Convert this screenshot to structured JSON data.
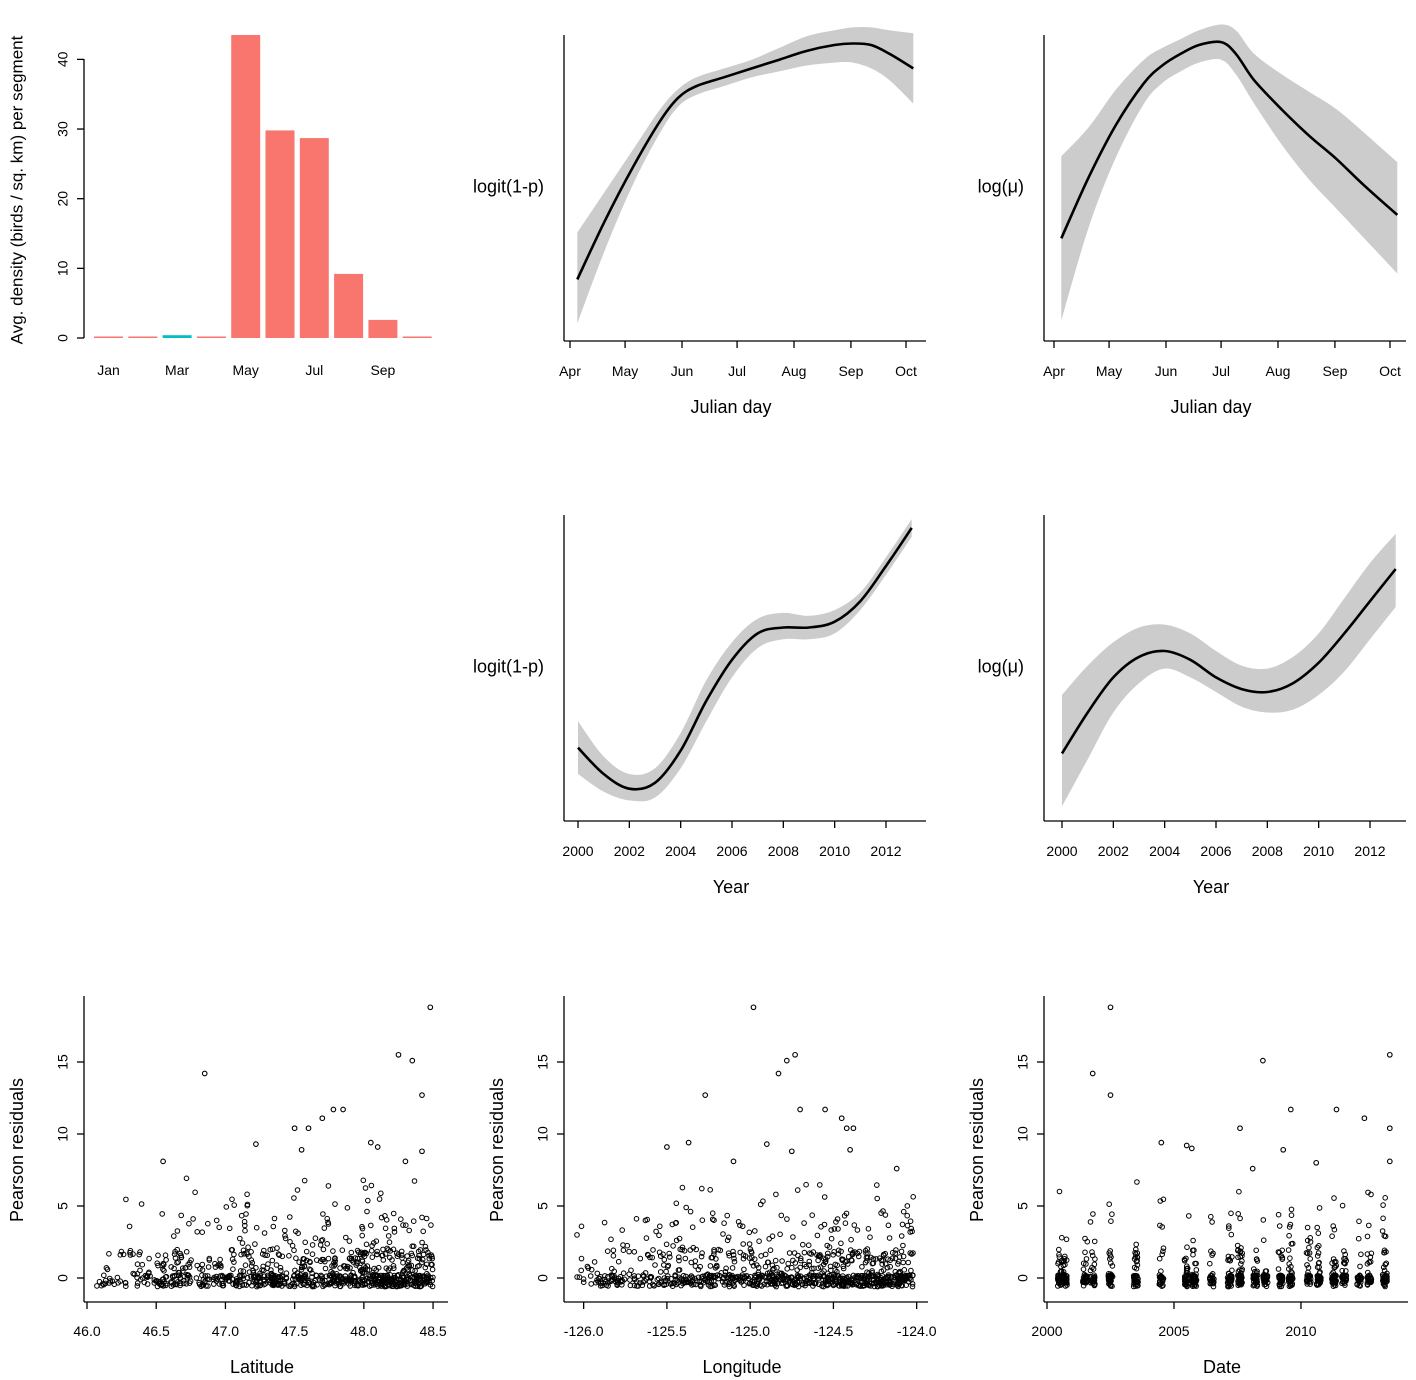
{
  "chart_data": [
    {
      "id": "seasonal-density",
      "type": "bar",
      "title": "",
      "ylabel": "Avg. density (birds / sq. km) per segment",
      "xlabel": "",
      "categories": [
        "Jan",
        "Feb",
        "Mar",
        "Apr",
        "May",
        "Jun",
        "Jul",
        "Aug",
        "Sep",
        "Oct"
      ],
      "tick_labels": [
        "Jan",
        "Mar",
        "May",
        "Jul",
        "Sep"
      ],
      "values": [
        0,
        0,
        0.4,
        0.15,
        43.5,
        29.8,
        28.7,
        9.2,
        2.6,
        0.2
      ],
      "bar_colors": [
        "#F8766D",
        "#F8766D",
        "#00BFC4",
        "#F8766D",
        "#F8766D",
        "#F8766D",
        "#F8766D",
        "#F8766D",
        "#F8766D",
        "#F8766D"
      ],
      "yticks": [
        0,
        10,
        20,
        30,
        40
      ],
      "ylim": [
        0,
        43.5
      ]
    },
    {
      "id": "julian-p",
      "type": "line",
      "xlabel": "Julian day",
      "ylabel": "logit(1-p)",
      "xticks": [
        91,
        121,
        152,
        182,
        213,
        244,
        274
      ],
      "xtick_labels": [
        "Apr",
        "May",
        "Jun",
        "Jul",
        "Aug",
        "Sep",
        "Oct"
      ],
      "xlim": [
        91,
        278
      ],
      "ylim": [
        0,
        1
      ],
      "x": [
        95,
        110,
        125,
        140,
        150,
        160,
        175,
        190,
        205,
        220,
        235,
        245,
        255,
        265,
        278
      ],
      "fit": [
        0.2,
        0.4,
        0.58,
        0.74,
        0.82,
        0.86,
        0.89,
        0.92,
        0.95,
        0.98,
        1.0,
        1.005,
        1.0,
        0.97,
        0.92
      ],
      "lower": [
        0.05,
        0.3,
        0.52,
        0.7,
        0.79,
        0.83,
        0.86,
        0.89,
        0.91,
        0.93,
        0.94,
        0.94,
        0.92,
        0.88,
        0.8
      ],
      "upper": [
        0.36,
        0.5,
        0.64,
        0.78,
        0.85,
        0.89,
        0.92,
        0.95,
        0.99,
        1.03,
        1.05,
        1.06,
        1.06,
        1.05,
        1.04
      ]
    },
    {
      "id": "julian-mu",
      "type": "line",
      "xlabel": "Julian day",
      "ylabel": "log(μ)",
      "xticks": [
        91,
        121,
        152,
        182,
        213,
        244,
        274
      ],
      "xtick_labels": [
        "Apr",
        "May",
        "Jun",
        "Jul",
        "Aug",
        "Sep",
        "Oct"
      ],
      "xlim": [
        91,
        278
      ],
      "ylim": [
        0,
        1
      ],
      "x": [
        95,
        110,
        125,
        140,
        150,
        160,
        170,
        182,
        190,
        200,
        215,
        230,
        245,
        260,
        278
      ],
      "fit": [
        0.34,
        0.55,
        0.73,
        0.87,
        0.93,
        0.97,
        1.0,
        1.01,
        0.97,
        0.88,
        0.78,
        0.69,
        0.61,
        0.52,
        0.42
      ],
      "lower": [
        0.06,
        0.38,
        0.62,
        0.8,
        0.87,
        0.91,
        0.94,
        0.95,
        0.9,
        0.8,
        0.66,
        0.54,
        0.44,
        0.34,
        0.22
      ],
      "upper": [
        0.62,
        0.72,
        0.85,
        0.95,
        0.99,
        1.02,
        1.05,
        1.07,
        1.05,
        0.97,
        0.9,
        0.84,
        0.78,
        0.7,
        0.6
      ]
    },
    {
      "id": "year-p",
      "type": "line",
      "xlabel": "Year",
      "ylabel": "logit(1-p)",
      "xticks": [
        2000,
        2002,
        2004,
        2006,
        2008,
        2010,
        2012
      ],
      "xtick_labels": [
        "2000",
        "2002",
        "2004",
        "2006",
        "2008",
        "2010",
        "2012"
      ],
      "xlim": [
        2000,
        2013
      ],
      "ylim": [
        0,
        1
      ],
      "x": [
        2000,
        2001,
        2002,
        2003,
        2004,
        2005,
        2006,
        2007,
        2008,
        2009,
        2010,
        2011,
        2012,
        2013
      ],
      "fit": [
        0.24,
        0.15,
        0.1,
        0.12,
        0.23,
        0.4,
        0.54,
        0.63,
        0.65,
        0.65,
        0.67,
        0.74,
        0.86,
        0.99
      ],
      "lower": [
        0.15,
        0.09,
        0.06,
        0.07,
        0.17,
        0.33,
        0.48,
        0.58,
        0.61,
        0.61,
        0.63,
        0.71,
        0.83,
        0.96
      ],
      "upper": [
        0.33,
        0.21,
        0.15,
        0.17,
        0.29,
        0.47,
        0.6,
        0.68,
        0.7,
        0.69,
        0.71,
        0.77,
        0.89,
        1.02
      ]
    },
    {
      "id": "year-mu",
      "type": "line",
      "xlabel": "Year",
      "ylabel": "log(μ)",
      "xticks": [
        2000,
        2002,
        2004,
        2006,
        2008,
        2010,
        2012
      ],
      "xtick_labels": [
        "2000",
        "2002",
        "2004",
        "2006",
        "2008",
        "2010",
        "2012"
      ],
      "xlim": [
        2000,
        2013
      ],
      "ylim": [
        0,
        1
      ],
      "x": [
        2000,
        2001,
        2002,
        2003,
        2004,
        2005,
        2006,
        2007,
        2008,
        2009,
        2010,
        2011,
        2012,
        2013
      ],
      "fit": [
        0.22,
        0.36,
        0.48,
        0.55,
        0.57,
        0.54,
        0.48,
        0.44,
        0.43,
        0.46,
        0.53,
        0.63,
        0.74,
        0.85
      ],
      "lower": [
        0.04,
        0.2,
        0.36,
        0.46,
        0.51,
        0.48,
        0.43,
        0.38,
        0.36,
        0.37,
        0.42,
        0.5,
        0.61,
        0.72
      ],
      "upper": [
        0.42,
        0.52,
        0.6,
        0.65,
        0.66,
        0.63,
        0.57,
        0.52,
        0.51,
        0.55,
        0.63,
        0.75,
        0.87,
        0.97
      ]
    },
    {
      "id": "resid-lat",
      "type": "scatter",
      "xlabel": "Latitude",
      "ylabel": "Pearson residuals",
      "xticks": [
        46.0,
        46.5,
        47.0,
        47.5,
        48.0,
        48.5
      ],
      "xtick_labels": [
        "46.0",
        "46.5",
        "47.0",
        "47.5",
        "48.0",
        "48.5"
      ],
      "yticks": [
        0,
        5,
        10,
        15
      ],
      "xlim": [
        46.0,
        48.55
      ],
      "ylim": [
        -0.8,
        19
      ],
      "highlight_points": [
        [
          48.48,
          18.8
        ],
        [
          48.25,
          15.5
        ],
        [
          48.35,
          15.1
        ],
        [
          46.85,
          14.2
        ],
        [
          48.42,
          12.7
        ],
        [
          47.85,
          11.7
        ],
        [
          47.78,
          11.7
        ],
        [
          47.7,
          11.1
        ],
        [
          47.5,
          10.4
        ],
        [
          47.6,
          10.4
        ],
        [
          48.05,
          9.4
        ],
        [
          47.22,
          9.3
        ],
        [
          48.1,
          9.1
        ],
        [
          47.55,
          8.9
        ],
        [
          48.42,
          8.8
        ],
        [
          46.55,
          8.1
        ],
        [
          48.3,
          8.1
        ]
      ]
    },
    {
      "id": "resid-lon",
      "type": "scatter",
      "xlabel": "Longitude",
      "ylabel": "Pearson residuals",
      "xticks": [
        -126.0,
        -125.5,
        -125.0,
        -124.5,
        -124.0
      ],
      "xtick_labels": [
        "-126.0",
        "-125.5",
        "-125.0",
        "-124.5",
        "-124.0"
      ],
      "yticks": [
        0,
        5,
        10,
        15
      ],
      "xlim": [
        -126.1,
        -123.98
      ],
      "ylim": [
        -0.8,
        19
      ],
      "highlight_points": [
        [
          -124.98,
          18.8
        ],
        [
          -124.73,
          15.5
        ],
        [
          -124.78,
          15.1
        ],
        [
          -124.83,
          14.2
        ],
        [
          -125.27,
          12.7
        ],
        [
          -124.7,
          11.7
        ],
        [
          -124.55,
          11.7
        ],
        [
          -124.45,
          11.1
        ],
        [
          -124.38,
          10.4
        ],
        [
          -124.42,
          10.4
        ],
        [
          -125.37,
          9.4
        ],
        [
          -124.9,
          9.3
        ],
        [
          -125.5,
          9.1
        ],
        [
          -124.4,
          8.9
        ],
        [
          -124.75,
          8.8
        ],
        [
          -125.1,
          8.1
        ],
        [
          -124.12,
          7.6
        ]
      ]
    },
    {
      "id": "resid-date",
      "type": "scatter",
      "xlabel": "Date",
      "ylabel": "Pearson residuals",
      "xticks": [
        2000,
        2005,
        2010
      ],
      "xtick_labels": [
        "2000",
        "2005",
        "2010"
      ],
      "yticks": [
        0,
        5,
        10,
        15
      ],
      "xlim": [
        2000,
        2013.9
      ],
      "ylim": [
        -0.8,
        19
      ],
      "survey_dates": [
        2000.5,
        2000.7,
        2001.5,
        2001.8,
        2002.5,
        2003.5,
        2004.5,
        2005.5,
        2005.8,
        2006.5,
        2007.2,
        2007.6,
        2008.2,
        2008.6,
        2009.2,
        2009.6,
        2010.3,
        2010.7,
        2011.3,
        2011.7,
        2012.3,
        2012.7,
        2013.3
      ],
      "highlight_points": [
        [
          2002.5,
          18.8
        ],
        [
          2013.5,
          15.5
        ],
        [
          2008.5,
          15.1
        ],
        [
          2001.8,
          14.2
        ],
        [
          2002.5,
          12.7
        ],
        [
          2009.6,
          11.7
        ],
        [
          2011.4,
          11.7
        ],
        [
          2012.5,
          11.1
        ],
        [
          2007.6,
          10.4
        ],
        [
          2013.5,
          10.4
        ],
        [
          2004.5,
          9.4
        ],
        [
          2005.5,
          9.2
        ],
        [
          2005.7,
          9.0
        ],
        [
          2009.3,
          8.9
        ],
        [
          2013.5,
          8.1
        ],
        [
          2010.6,
          8.0
        ],
        [
          2008.1,
          7.6
        ]
      ]
    }
  ]
}
